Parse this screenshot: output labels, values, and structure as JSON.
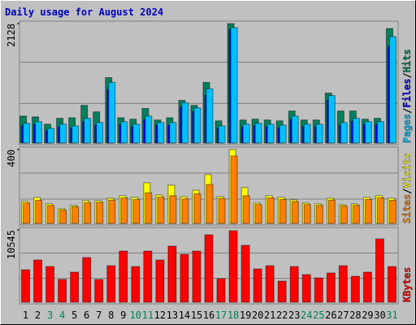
{
  "chart_data": [
    {
      "type": "bar",
      "title": "Daily usage for August 2024",
      "categories": [
        "1",
        "2",
        "3",
        "4",
        "5",
        "6",
        "7",
        "8",
        "9",
        "10",
        "11",
        "12",
        "13",
        "14",
        "15",
        "16",
        "17",
        "18",
        "19",
        "20",
        "21",
        "22",
        "23",
        "24",
        "25",
        "26",
        "27",
        "28",
        "29",
        "30",
        "31"
      ],
      "category_colors": [
        "#000000",
        "#000000",
        "#00805c",
        "#00805c",
        "#000000",
        "#000000",
        "#000000",
        "#000000",
        "#000000",
        "#00805c",
        "#00805c",
        "#000000",
        "#000000",
        "#000000",
        "#000000",
        "#000000",
        "#00805c",
        "#00805c",
        "#000000",
        "#000000",
        "#000000",
        "#000000",
        "#000000",
        "#00805c",
        "#00805c",
        "#000000",
        "#000000",
        "#000000",
        "#000000",
        "#000000",
        "#00805c"
      ],
      "legend_separator": "/",
      "ylim": [
        0,
        2128
      ],
      "yticks": [
        2128
      ],
      "series": [
        {
          "name": "Hits",
          "color": "#00805c",
          "values": [
            480,
            465,
            335,
            440,
            450,
            670,
            555,
            1165,
            450,
            425,
            615,
            410,
            450,
            760,
            670,
            1080,
            395,
            2128,
            410,
            425,
            410,
            395,
            570,
            410,
            410,
            890,
            570,
            570,
            425,
            440,
            2040
          ]
        },
        {
          "name": "Files",
          "color": "#0000ff",
          "values": [
            310,
            330,
            220,
            290,
            260,
            380,
            320,
            950,
            330,
            290,
            420,
            320,
            320,
            640,
            560,
            850,
            260,
            2030,
            290,
            300,
            290,
            270,
            420,
            290,
            290,
            760,
            320,
            390,
            330,
            330,
            1720
          ]
        },
        {
          "name": "Pages",
          "color": "#00c0ff",
          "values": [
            350,
            380,
            260,
            335,
            305,
            440,
            365,
            1080,
            380,
            335,
            480,
            365,
            365,
            715,
            625,
            965,
            305,
            2055,
            335,
            350,
            335,
            320,
            480,
            335,
            335,
            845,
            365,
            440,
            380,
            380,
            1895
          ]
        }
      ]
    },
    {
      "type": "bar",
      "ylim": [
        0,
        400
      ],
      "yticks": [
        400
      ],
      "series": [
        {
          "name": "Visits",
          "color": "#ffff00",
          "values": [
            119,
            141,
            106,
            79,
            97,
            123,
            123,
            136,
            150,
            141,
            220,
            154,
            207,
            145,
            180,
            264,
            145,
            400,
            194,
            110,
            150,
            141,
            128,
            110,
            106,
            136,
            101,
            106,
            141,
            150,
            136
          ]
        },
        {
          "name": "Sites",
          "color": "#ff8000",
          "values": [
            110,
            125,
            97,
            72,
            90,
            112,
            114,
            126,
            138,
            130,
            165,
            142,
            150,
            133,
            160,
            211,
            135,
            365,
            150,
            102,
            138,
            130,
            118,
            102,
            98,
            126,
            94,
            98,
            130,
            138,
            125
          ]
        }
      ]
    },
    {
      "type": "bar",
      "ylim": [
        0,
        10545
      ],
      "yticks": [
        10545
      ],
      "series": [
        {
          "name": "KBytes",
          "color": "#ff0000",
          "values": [
            4740,
            6160,
            5210,
            3320,
            4385,
            6520,
            3320,
            5330,
            7460,
            5210,
            7460,
            6160,
            8180,
            6990,
            7460,
            9835,
            3440,
            10430,
            8300,
            4860,
            5330,
            3080,
            5210,
            4030,
            3555,
            4265,
            5330,
            3790,
            4385,
            9240,
            5210
          ]
        }
      ]
    }
  ]
}
